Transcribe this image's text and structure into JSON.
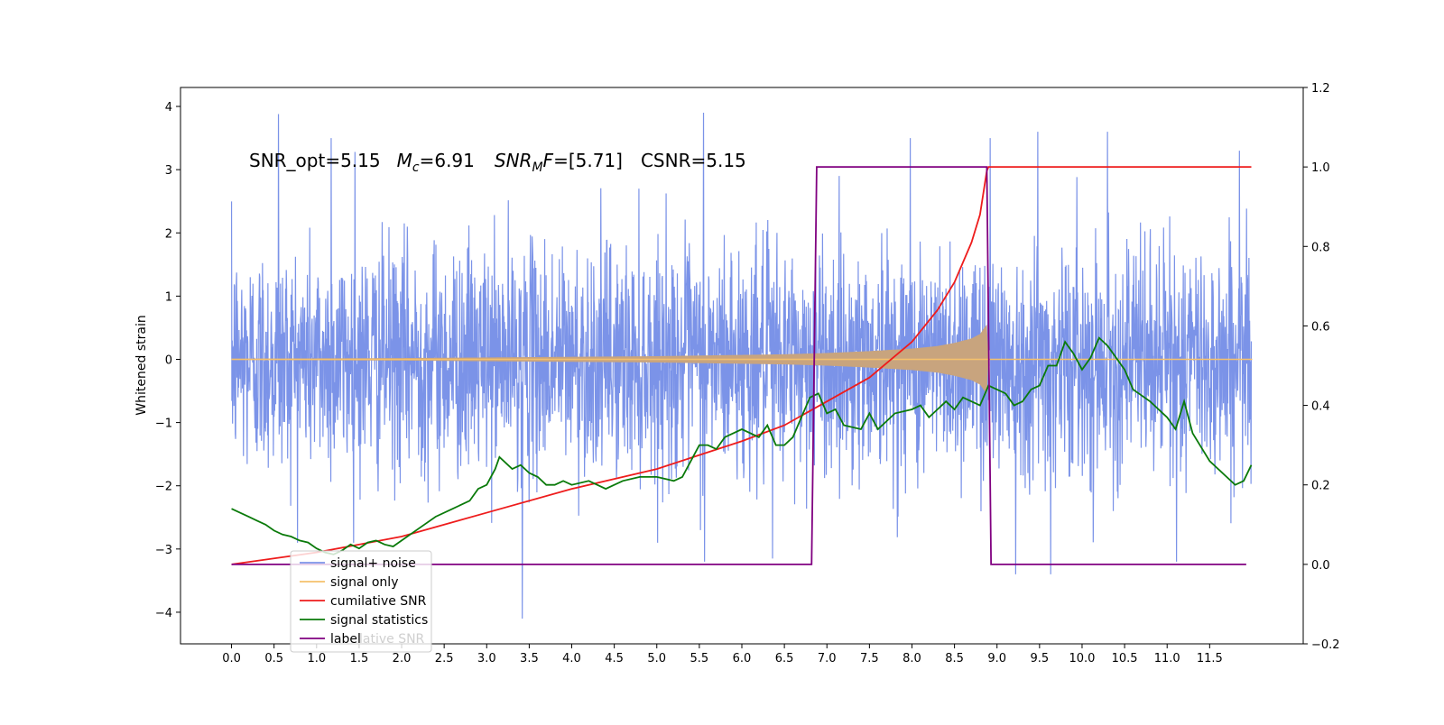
{
  "chart_data": {
    "type": "line",
    "title": "",
    "xlabel": "",
    "ylabel": "Whitened strain",
    "ylabel_right": "",
    "xlim": [
      -0.6,
      12.6
    ],
    "ylim": [
      -4.5,
      4.3
    ],
    "ylim_right": [
      -0.2,
      1.2
    ],
    "x_ticks": [
      0.0,
      0.5,
      1.0,
      1.5,
      2.0,
      2.5,
      3.0,
      3.5,
      4.0,
      4.5,
      5.0,
      5.5,
      6.0,
      6.5,
      7.0,
      7.5,
      8.0,
      8.5,
      9.0,
      9.5,
      10.0,
      10.5,
      11.0,
      11.5
    ],
    "x_tick_labels": [
      "0.0",
      "0.5",
      "1.0",
      "1.5",
      "2.0",
      "2.5",
      "3.0",
      "3.5",
      "4.0",
      "4.5",
      "5.0",
      "5.5",
      "6.0",
      "6.5",
      "7.0",
      "7.5",
      "8.0",
      "8.5",
      "9.0",
      "9.5",
      "10.0",
      "10.5",
      "11.0",
      "11.5"
    ],
    "y_ticks": [
      -4,
      -3,
      -2,
      -1,
      0,
      1,
      2,
      3,
      4
    ],
    "y_tick_labels": [
      "−4",
      "−3",
      "−2",
      "−1",
      "0",
      "1",
      "2",
      "3",
      "4"
    ],
    "y_ticks_right": [
      -0.2,
      0.0,
      0.2,
      0.4,
      0.6,
      0.8,
      1.0,
      1.2
    ],
    "y_tick_labels_right": [
      "−0.2",
      "0.0",
      "0.2",
      "0.4",
      "0.6",
      "0.8",
      "1.0",
      "1.2"
    ],
    "annotation": {
      "snr_opt": "SNR_opt=5.15",
      "mc_sym": "M",
      "mc_sub": "c",
      "mc_val": "=6.91",
      "mf_sym": "SNR",
      "mf_sub": "M",
      "mf_sym2": "F",
      "mf_val": "=[5.71]",
      "csnr": "CSNR=5.15"
    },
    "legend_placement": "lower-left",
    "legend_overlap_text": "lative SNR",
    "grid": false,
    "colors": {
      "noise": "#7b93e8",
      "signal": "#f5c16c",
      "signal_fill": "#c8a47e",
      "cumulative": "#ee1c1c",
      "statistics": "#0a7a0a",
      "label": "#800080"
    },
    "series": [
      {
        "name": "signal+ noise",
        "axis": "left",
        "x_range": [
          0.0,
          11.99
        ],
        "amplitude_sd": 0.9,
        "peaks": [
          [
            0.55,
            3.88
          ],
          [
            1.17,
            3.5
          ],
          [
            1.45,
            3.28
          ],
          [
            5.55,
            3.9
          ],
          [
            3.42,
            -4.1
          ],
          [
            7.98,
            3.5
          ],
          [
            8.92,
            3.5
          ],
          [
            9.48,
            3.6
          ],
          [
            10.3,
            3.6
          ],
          [
            11.85,
            3.3
          ],
          [
            9.22,
            -3.4
          ],
          [
            9.63,
            -3.4
          ],
          [
            11.11,
            -3.2
          ],
          [
            5.56,
            -3.2
          ],
          [
            6.36,
            -3.15
          ]
        ]
      },
      {
        "name": "signal only",
        "axis": "left",
        "envelope_x": [
          0.0,
          2.0,
          4.0,
          5.0,
          6.0,
          6.5,
          7.0,
          7.5,
          8.0,
          8.3,
          8.5,
          8.7,
          8.8,
          8.88,
          8.9,
          12.0
        ],
        "envelope_amp": [
          0.01,
          0.02,
          0.04,
          0.05,
          0.07,
          0.08,
          0.1,
          0.13,
          0.17,
          0.21,
          0.26,
          0.33,
          0.4,
          0.55,
          0.0,
          0.0
        ]
      },
      {
        "name": "cumilative SNR",
        "axis": "right",
        "x": [
          0.0,
          1.0,
          2.0,
          3.0,
          4.0,
          5.0,
          6.0,
          6.5,
          7.0,
          7.5,
          8.0,
          8.3,
          8.5,
          8.7,
          8.8,
          8.88,
          8.9,
          11.99
        ],
        "values": [
          0.0,
          0.03,
          0.07,
          0.13,
          0.19,
          0.24,
          0.31,
          0.35,
          0.41,
          0.47,
          0.56,
          0.64,
          0.71,
          0.81,
          0.88,
          0.99,
          1.0,
          1.0
        ]
      },
      {
        "name": "signal statistics",
        "axis": "right",
        "x": [
          0.0,
          0.1,
          0.2,
          0.3,
          0.4,
          0.5,
          0.6,
          0.7,
          0.8,
          0.9,
          1.0,
          1.1,
          1.2,
          1.3,
          1.4,
          1.5,
          1.6,
          1.7,
          1.8,
          1.9,
          2.0,
          2.2,
          2.4,
          2.6,
          2.8,
          2.9,
          3.0,
          3.1,
          3.15,
          3.3,
          3.4,
          3.5,
          3.6,
          3.7,
          3.8,
          3.9,
          4.0,
          4.2,
          4.4,
          4.5,
          4.6,
          4.8,
          5.0,
          5.2,
          5.3,
          5.4,
          5.5,
          5.6,
          5.7,
          5.8,
          6.0,
          6.2,
          6.3,
          6.4,
          6.5,
          6.6,
          6.7,
          6.8,
          6.9,
          7.0,
          7.1,
          7.2,
          7.4,
          7.5,
          7.6,
          7.8,
          8.0,
          8.1,
          8.2,
          8.3,
          8.4,
          8.5,
          8.6,
          8.7,
          8.8,
          8.9,
          9.0,
          9.1,
          9.2,
          9.3,
          9.4,
          9.5,
          9.6,
          9.7,
          9.8,
          9.9,
          10.0,
          10.1,
          10.2,
          10.3,
          10.4,
          10.5,
          10.6,
          10.8,
          11.0,
          11.1,
          11.2,
          11.3,
          11.5,
          11.7,
          11.8,
          11.9,
          11.99
        ],
        "values": [
          0.14,
          0.13,
          0.12,
          0.11,
          0.1,
          0.085,
          0.075,
          0.07,
          0.06,
          0.055,
          0.04,
          0.03,
          0.025,
          0.035,
          0.05,
          0.04,
          0.055,
          0.06,
          0.05,
          0.045,
          0.06,
          0.09,
          0.12,
          0.14,
          0.16,
          0.19,
          0.2,
          0.24,
          0.27,
          0.24,
          0.25,
          0.23,
          0.22,
          0.2,
          0.2,
          0.21,
          0.2,
          0.21,
          0.19,
          0.2,
          0.21,
          0.22,
          0.22,
          0.21,
          0.22,
          0.26,
          0.3,
          0.3,
          0.29,
          0.32,
          0.34,
          0.32,
          0.35,
          0.3,
          0.3,
          0.32,
          0.37,
          0.42,
          0.43,
          0.38,
          0.39,
          0.35,
          0.34,
          0.38,
          0.34,
          0.38,
          0.39,
          0.4,
          0.37,
          0.39,
          0.41,
          0.39,
          0.42,
          0.41,
          0.4,
          0.45,
          0.44,
          0.43,
          0.4,
          0.41,
          0.44,
          0.45,
          0.5,
          0.5,
          0.56,
          0.53,
          0.49,
          0.52,
          0.57,
          0.55,
          0.52,
          0.49,
          0.44,
          0.41,
          0.37,
          0.34,
          0.41,
          0.33,
          0.26,
          0.22,
          0.2,
          0.21,
          0.25
        ]
      },
      {
        "name": "label",
        "axis": "right",
        "x": [
          0.0,
          6.82,
          6.88,
          8.88,
          8.93,
          11.93
        ],
        "values": [
          0.0,
          0.0,
          1.0,
          1.0,
          0.0,
          0.0
        ]
      }
    ]
  }
}
